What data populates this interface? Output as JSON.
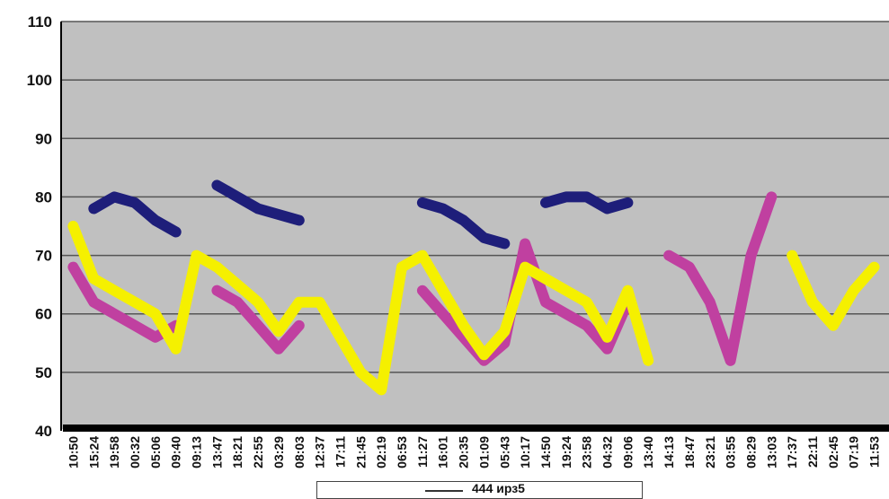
{
  "chart_data": {
    "type": "line",
    "title": "",
    "xlabel": "",
    "ylabel": "",
    "ylim": [
      40,
      110
    ],
    "yticks": [
      40,
      50,
      60,
      70,
      80,
      90,
      100,
      110
    ],
    "grid": true,
    "legend_position": "bottom",
    "background_color": "#c0c0c0",
    "x_tick_labels": [
      "10:50",
      "15:24",
      "19:58",
      "00:32",
      "05:06",
      "09:40",
      "09:13",
      "13:47",
      "18:21",
      "22:55",
      "03:29",
      "08:03",
      "12:37",
      "17:11",
      "21:45",
      "02:19",
      "06:53",
      "11:27",
      "16:01",
      "20:35",
      "01:09",
      "05:43",
      "10:17",
      "14:50",
      "19:24",
      "23:58",
      "04:32",
      "09:06",
      "13:40",
      "14:13",
      "18:47",
      "23:21",
      "03:55",
      "08:29",
      "13:03",
      "17:37",
      "22:11",
      "02:45",
      "07:19",
      "11:53"
    ],
    "legend": {
      "label": "444 ирз5"
    },
    "series": [
      {
        "color": "#1e1e7a",
        "values": [
          null,
          78,
          80,
          79,
          76,
          74,
          null,
          82,
          80,
          78,
          77,
          76,
          null,
          null,
          null,
          null,
          null,
          79,
          78,
          76,
          73,
          72,
          null,
          79,
          80,
          80,
          78,
          79,
          null,
          null,
          null,
          null,
          null,
          null,
          null,
          null,
          null,
          null,
          null,
          null
        ]
      },
      {
        "color": "#c040a0",
        "values": [
          68,
          62,
          60,
          58,
          56,
          58,
          null,
          64,
          62,
          58,
          54,
          58,
          null,
          null,
          null,
          null,
          null,
          64,
          60,
          56,
          52,
          55,
          72,
          62,
          60,
          58,
          54,
          62,
          null,
          70,
          68,
          62,
          52,
          70,
          80,
          null,
          null,
          null,
          null,
          null
        ]
      },
      {
        "color": "#f5f000",
        "values": [
          75,
          66,
          64,
          62,
          60,
          54,
          70,
          68,
          65,
          62,
          57,
          62,
          62,
          56,
          50,
          47,
          68,
          70,
          64,
          58,
          53,
          57,
          68,
          66,
          64,
          62,
          56,
          64,
          52,
          null,
          null,
          null,
          null,
          null,
          null,
          70,
          62,
          58,
          64,
          68
        ]
      }
    ]
  }
}
